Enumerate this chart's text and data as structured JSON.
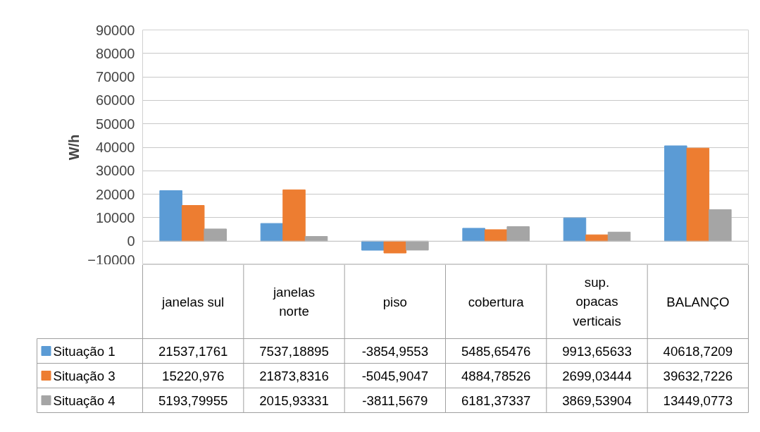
{
  "chart_data": {
    "type": "bar",
    "ylabel": "W/h",
    "categories": [
      "janelas sul",
      "janelas\nnorte",
      "piso",
      "cobertura",
      "sup.\nopacas\nverticais",
      "BALANÇO"
    ],
    "series": [
      {
        "name": "Situação 1",
        "color": "#5b9bd5",
        "values": [
          21537.1761,
          7537.18895,
          -3854.9553,
          5485.65476,
          9913.65633,
          40618.7209
        ],
        "value_labels": [
          "21537,1761",
          "7537,18895",
          "-3854,9553",
          "5485,65476",
          "9913,65633",
          "40618,7209"
        ]
      },
      {
        "name": "Situação 3",
        "color": "#ed7d31",
        "values": [
          15220.976,
          21873.8316,
          -5045.9047,
          4884.78526,
          2699.03444,
          39632.7226
        ],
        "value_labels": [
          "15220,976",
          "21873,8316",
          "-5045,9047",
          "4884,78526",
          "2699,03444",
          "39632,7226"
        ]
      },
      {
        "name": "Situação 4",
        "color": "#a5a5a5",
        "values": [
          5193.79955,
          2015.93331,
          -3811.5679,
          6181.37337,
          3869.53904,
          13449.0773
        ],
        "value_labels": [
          "5193,79955",
          "2015,93331",
          "-3811,5679",
          "6181,37337",
          "3869,53904",
          "13449,0773"
        ]
      }
    ],
    "ylim": [
      -10000,
      90000
    ],
    "yticks": [
      -10000,
      0,
      10000,
      20000,
      30000,
      40000,
      50000,
      60000,
      70000,
      80000,
      90000
    ],
    "grid": "y",
    "legend": "bottom"
  }
}
